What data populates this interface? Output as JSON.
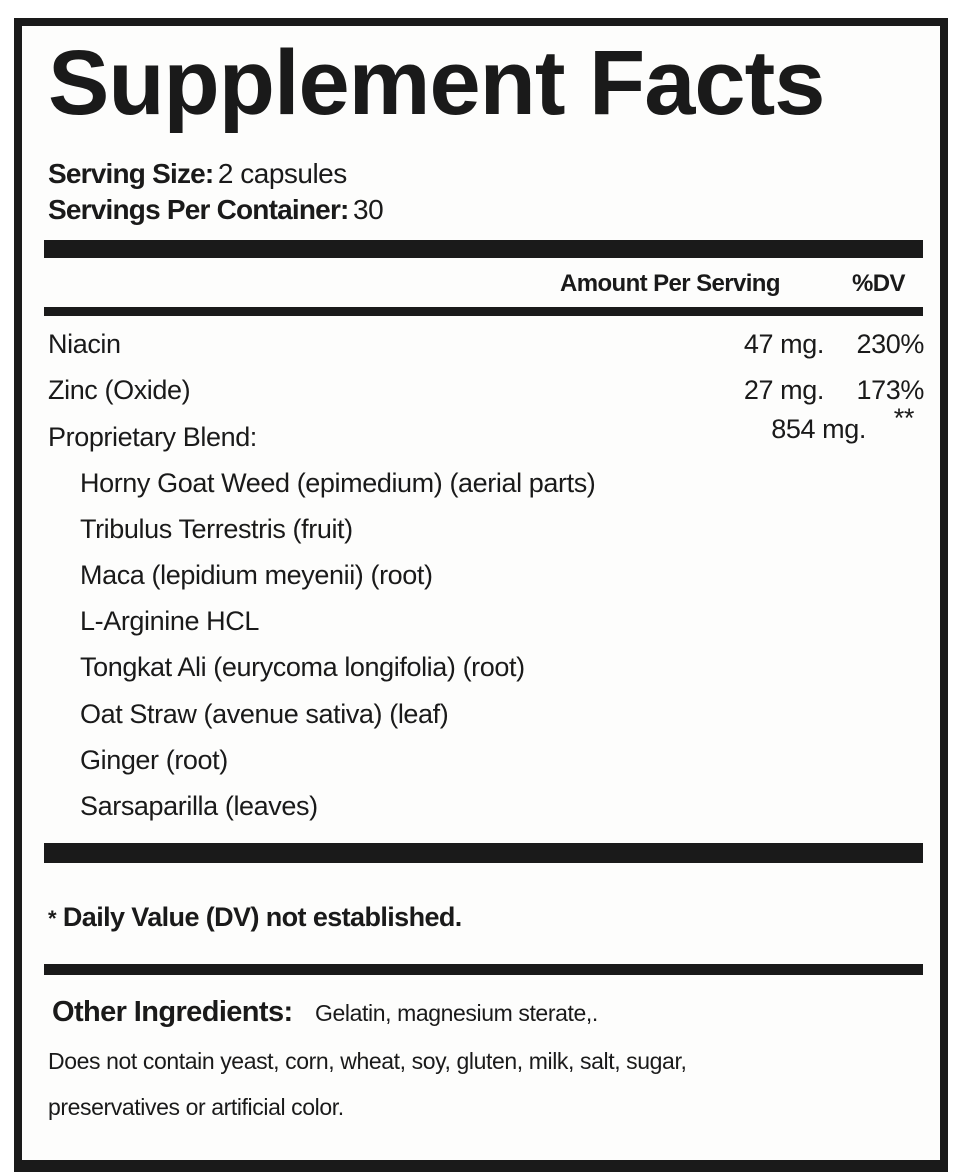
{
  "title": "Supplement Facts",
  "serving_size": {
    "label": "Serving Size:",
    "value": "2 capsules"
  },
  "servings_per_container": {
    "label": "Servings Per Container:",
    "value": "30"
  },
  "header": {
    "amount": "Amount Per Serving",
    "dv": "%DV"
  },
  "nutrients": [
    {
      "name": "Niacin",
      "amount": "47 mg.",
      "dv": "230%"
    },
    {
      "name": "Zinc (Oxide)",
      "amount": "27 mg.",
      "dv": "173%"
    },
    {
      "name": "Proprietary Blend:",
      "amount": "854 mg.",
      "dv": "**"
    }
  ],
  "blend": [
    "Horny Goat Weed (epimedium) (aerial parts)",
    "Tribulus Terrestris (fruit)",
    "Maca (lepidium meyenii) (root)",
    "L-Arginine HCL",
    "Tongkat Ali (eurycoma longifolia) (root)",
    "Oat Straw (avenue sativa) (leaf)",
    "Ginger (root)",
    "Sarsaparilla (leaves)"
  ],
  "footnote": {
    "star": "*",
    "text": "Daily Value (DV) not established."
  },
  "other_ingredients": {
    "label": "Other Ingredients:",
    "value": "Gelatin, magnesium sterate,."
  },
  "disclaimer": [
    "Does not contain yeast, corn, wheat, soy, gluten, milk, salt, sugar,",
    "preservatives or artificial color."
  ]
}
